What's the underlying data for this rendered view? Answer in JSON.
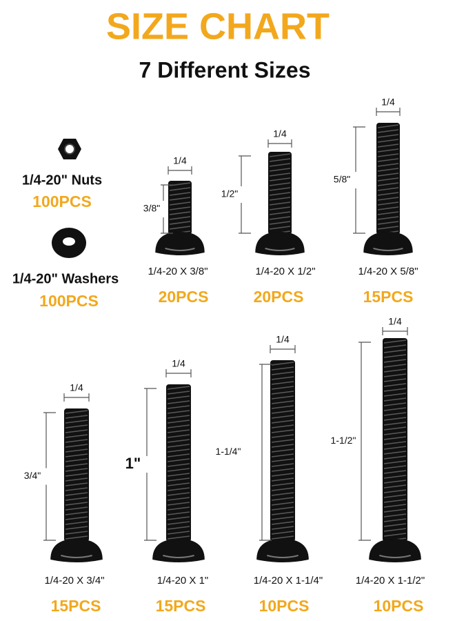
{
  "title": "SIZE CHART",
  "subtitle": "7 Different Sizes",
  "hardware": [
    {
      "name": "1/4-20\" Nuts",
      "quantity": "100PCS"
    },
    {
      "name": "1/4-20\" Washers",
      "quantity": "100PCS"
    }
  ],
  "screws": [
    {
      "diameter": "1/4",
      "length": "3/8\"",
      "name": "1/4-20 X 3/8\"",
      "quantity": "20PCS"
    },
    {
      "diameter": "1/4",
      "length": "1/2\"",
      "name": "1/4-20 X 1/2\"",
      "quantity": "20PCS"
    },
    {
      "diameter": "1/4",
      "length": "5/8\"",
      "name": "1/4-20 X 5/8\"",
      "quantity": "15PCS"
    },
    {
      "diameter": "1/4",
      "length": "3/4\"",
      "name": "1/4-20 X 3/4\"",
      "quantity": "15PCS"
    },
    {
      "diameter": "1/4",
      "length": "1\"",
      "name": "1/4-20 X 1\"",
      "quantity": "15PCS"
    },
    {
      "diameter": "1/4",
      "length": "1-1/4\"",
      "name": "1/4-20 X 1-1/4\"",
      "quantity": "10PCS"
    },
    {
      "diameter": "1/4",
      "length": "1-1/2\"",
      "name": "1/4-20 X 1-1/2\"",
      "quantity": "10PCS"
    }
  ]
}
